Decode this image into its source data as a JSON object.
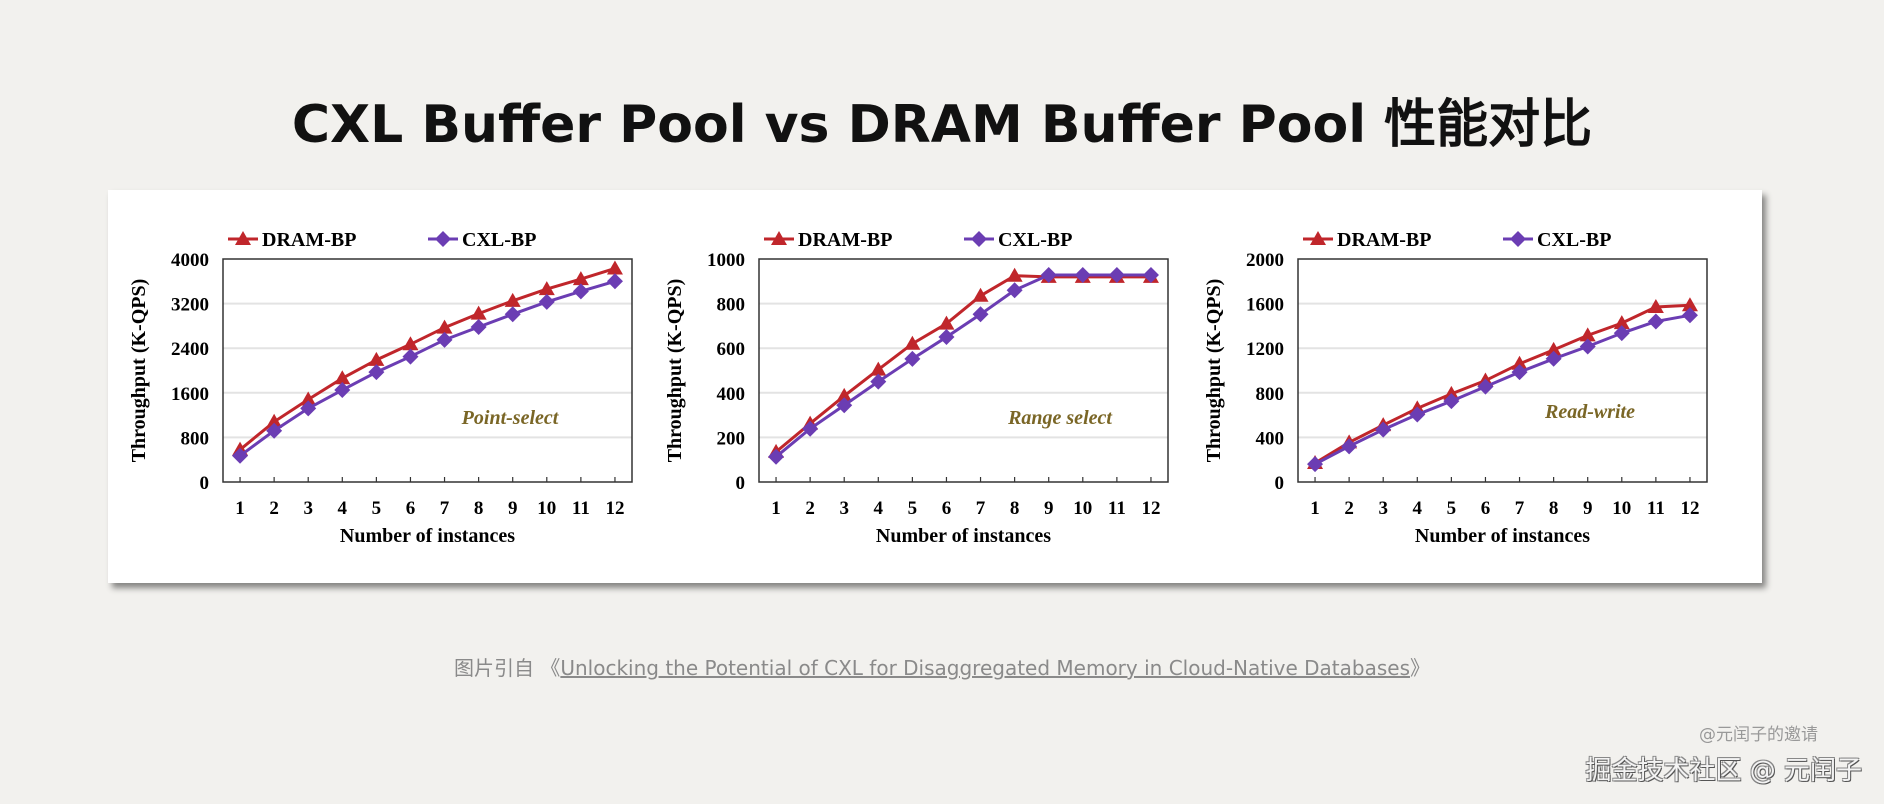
{
  "page": {
    "title": "CXL Buffer Pool vs DRAM Buffer Pool 性能对比",
    "caption_prefix": "图片引自",
    "caption_open": "《",
    "caption_source": "Unlocking the Potential of CXL for Disaggregated Memory in Cloud-Native Databases",
    "caption_close": "》",
    "watermark_small": "@元闰子的邀请",
    "watermark_main": "掘金技术社区 @ 元闰子"
  },
  "colors": {
    "dram": "#c0262b",
    "cxl": "#6b3db3",
    "annotation": "#7a6626",
    "grid": "#e3e3e3",
    "axis": "#333333"
  },
  "chart_data": [
    {
      "type": "line",
      "title": "",
      "annotation": "Point-select",
      "xlabel": "Number of instances",
      "ylabel": "Throughput (K-QPS)",
      "categories": [
        "1",
        "2",
        "3",
        "4",
        "5",
        "6",
        "7",
        "8",
        "9",
        "10",
        "11",
        "12"
      ],
      "ylim": [
        0,
        4000
      ],
      "yticks": [
        "0",
        "800",
        "1600",
        "2400",
        "3200",
        "4000"
      ],
      "grid": true,
      "legend": "top",
      "series": [
        {
          "name": "DRAM-BP",
          "marker": "triangle",
          "values": [
            580,
            1080,
            1480,
            1860,
            2190,
            2470,
            2770,
            3020,
            3250,
            3460,
            3640,
            3830
          ]
        },
        {
          "name": "CXL-BP",
          "marker": "diamond",
          "values": [
            470,
            920,
            1320,
            1650,
            1970,
            2250,
            2550,
            2780,
            3010,
            3230,
            3420,
            3600
          ]
        }
      ]
    },
    {
      "type": "line",
      "title": "",
      "annotation": "Range select",
      "xlabel": "Number of instances",
      "ylabel": "Throughput (K-QPS)",
      "categories": [
        "1",
        "2",
        "3",
        "4",
        "5",
        "6",
        "7",
        "8",
        "9",
        "10",
        "11",
        "12"
      ],
      "ylim": [
        0,
        1000
      ],
      "yticks": [
        "0",
        "200",
        "400",
        "600",
        "800",
        "1000"
      ],
      "grid": true,
      "legend": "top",
      "series": [
        {
          "name": "DRAM-BP",
          "marker": "triangle",
          "values": [
            135,
            262,
            386,
            504,
            620,
            710,
            835,
            925,
            920,
            920,
            920,
            920
          ]
        },
        {
          "name": "CXL-BP",
          "marker": "diamond",
          "values": [
            113,
            239,
            344,
            450,
            552,
            650,
            752,
            860,
            928,
            928,
            928,
            928
          ]
        }
      ]
    },
    {
      "type": "line",
      "title": "",
      "annotation": "Read-write",
      "xlabel": "Number of instances",
      "ylabel": "Throughput (K-QPS)",
      "categories": [
        "1",
        "2",
        "3",
        "4",
        "5",
        "6",
        "7",
        "8",
        "9",
        "10",
        "11",
        "12"
      ],
      "ylim": [
        0,
        2000
      ],
      "yticks": [
        "0",
        "400",
        "800",
        "1200",
        "1600",
        "2000"
      ],
      "grid": true,
      "legend": "top",
      "series": [
        {
          "name": "DRAM-BP",
          "marker": "triangle",
          "values": [
            170,
            355,
            510,
            660,
            790,
            910,
            1060,
            1185,
            1315,
            1425,
            1570,
            1585
          ]
        },
        {
          "name": "CXL-BP",
          "marker": "diamond",
          "values": [
            160,
            320,
            470,
            605,
            725,
            855,
            985,
            1105,
            1215,
            1335,
            1440,
            1495
          ]
        }
      ]
    }
  ]
}
